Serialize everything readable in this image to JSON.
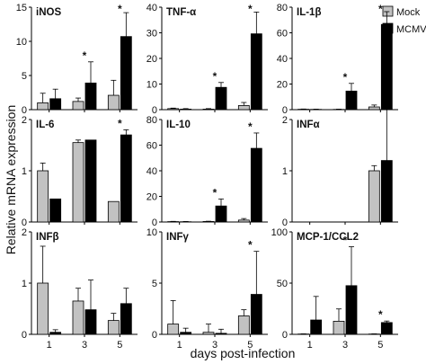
{
  "chart_data": {
    "type": "bar",
    "ylabel": "Relative mRNA expression",
    "xlabel": "days post-infection",
    "categories": [
      "1",
      "3",
      "5"
    ],
    "legend": {
      "placement": "top-right",
      "entries": [
        "Mock",
        "MCMV"
      ]
    },
    "colors": {
      "Mock": "#c2c2c2",
      "MCMV": "#000000"
    },
    "panels": [
      {
        "title": "iNOS",
        "ylim": [
          0,
          15
        ],
        "yticks": [
          "0",
          "5",
          "10",
          "15"
        ],
        "series": [
          {
            "name": "Mock",
            "values": [
              1.0,
              1.2,
              2.1
            ],
            "errors": [
              1.4,
              0.5,
              2.2
            ]
          },
          {
            "name": "MCMV",
            "values": [
              1.6,
              3.9,
              10.7
            ],
            "errors": [
              1.4,
              3.1,
              3.5
            ]
          }
        ],
        "significant": [
          false,
          true,
          true
        ]
      },
      {
        "title": "TNF-α",
        "ylim": [
          0,
          40
        ],
        "yticks": [
          "0",
          "10",
          "20",
          "30",
          "40"
        ],
        "series": [
          {
            "name": "Mock",
            "values": [
              0.4,
              0.2,
              1.6
            ],
            "errors": [
              0.2,
              0.2,
              1.2
            ]
          },
          {
            "name": "MCMV",
            "values": [
              0.2,
              8.7,
              29.6
            ],
            "errors": [
              0.2,
              1.9,
              8.5
            ]
          }
        ],
        "significant": [
          false,
          true,
          true
        ]
      },
      {
        "title": "IL-1β",
        "ylim": [
          0,
          80
        ],
        "yticks": [
          "0",
          "20",
          "40",
          "60",
          "80"
        ],
        "series": [
          {
            "name": "Mock",
            "values": [
              0.3,
              0.2,
              2.1
            ],
            "errors": [
              0.2,
              0.2,
              1.5
            ]
          },
          {
            "name": "MCMV",
            "values": [
              0.2,
              14.5,
              66.5
            ],
            "errors": [
              0.2,
              6.0,
              10.0
            ]
          }
        ],
        "significant": [
          false,
          true,
          true
        ]
      },
      {
        "title": "IL-6",
        "ylim": [
          0,
          2
        ],
        "yticks": [
          "0",
          "1",
          "2"
        ],
        "series": [
          {
            "name": "Mock",
            "values": [
              1.0,
              1.55,
              0.4
            ],
            "errors": [
              0.15,
              0.05,
              0.0
            ]
          },
          {
            "name": "MCMV",
            "values": [
              0.45,
              1.6,
              1.7
            ],
            "errors": [
              0.0,
              0.0,
              0.1
            ]
          }
        ],
        "significant": [
          false,
          false,
          true
        ]
      },
      {
        "title": "IL-10",
        "ylim": [
          0,
          80
        ],
        "yticks": [
          "0",
          "20",
          "40",
          "60",
          "80"
        ],
        "series": [
          {
            "name": "Mock",
            "values": [
              0.3,
              0.4,
              1.5
            ],
            "errors": [
              0.2,
              0.2,
              1.2
            ]
          },
          {
            "name": "MCMV",
            "values": [
              0.2,
              12.5,
              57.5
            ],
            "errors": [
              0.2,
              5.5,
              12.0
            ]
          }
        ],
        "significant": [
          false,
          true,
          true
        ]
      },
      {
        "title": "INFα",
        "ylim": [
          0,
          2
        ],
        "yticks": [
          "0",
          "1",
          "2"
        ],
        "series": [
          {
            "name": "Mock",
            "values": [
              0.0,
              0.0,
              1.0
            ],
            "errors": [
              0.0,
              0.0,
              0.1
            ]
          },
          {
            "name": "MCMV",
            "values": [
              0.0,
              0.0,
              1.2
            ],
            "errors": [
              0.0,
              0.0,
              1.3
            ]
          }
        ],
        "significant": [
          false,
          false,
          false
        ]
      },
      {
        "title": "INFβ",
        "ylim": [
          0,
          2
        ],
        "yticks": [
          "0",
          "1",
          "2"
        ],
        "series": [
          {
            "name": "Mock",
            "values": [
              1.0,
              0.65,
              0.27
            ],
            "errors": [
              0.72,
              0.25,
              0.14
            ]
          },
          {
            "name": "MCMV",
            "values": [
              0.04,
              0.48,
              0.6
            ],
            "errors": [
              0.05,
              0.58,
              0.3
            ]
          }
        ],
        "significant": [
          false,
          false,
          false
        ]
      },
      {
        "title": "INFγ",
        "ylim": [
          0,
          10
        ],
        "yticks": [
          "0",
          "5",
          "10"
        ],
        "series": [
          {
            "name": "Mock",
            "values": [
              1.0,
              0.2,
              1.8
            ],
            "errors": [
              2.3,
              0.8,
              0.6
            ]
          },
          {
            "name": "MCMV",
            "values": [
              0.2,
              0.1,
              3.9
            ],
            "errors": [
              0.4,
              0.4,
              4.2
            ]
          }
        ],
        "significant": [
          false,
          false,
          true
        ]
      },
      {
        "title": "MCP-1/CCL2",
        "ylim": [
          0,
          100
        ],
        "yticks": [
          "0",
          "50",
          "100"
        ],
        "series": [
          {
            "name": "Mock",
            "values": [
              0.3,
              12.8,
              0.3
            ],
            "errors": [
              0.2,
              12.0,
              0.2
            ]
          },
          {
            "name": "MCMV",
            "values": [
              14.0,
              47.5,
              11.5
            ],
            "errors": [
              23.0,
              38.0,
              1.5
            ]
          }
        ],
        "significant": [
          false,
          true,
          true
        ]
      }
    ]
  }
}
